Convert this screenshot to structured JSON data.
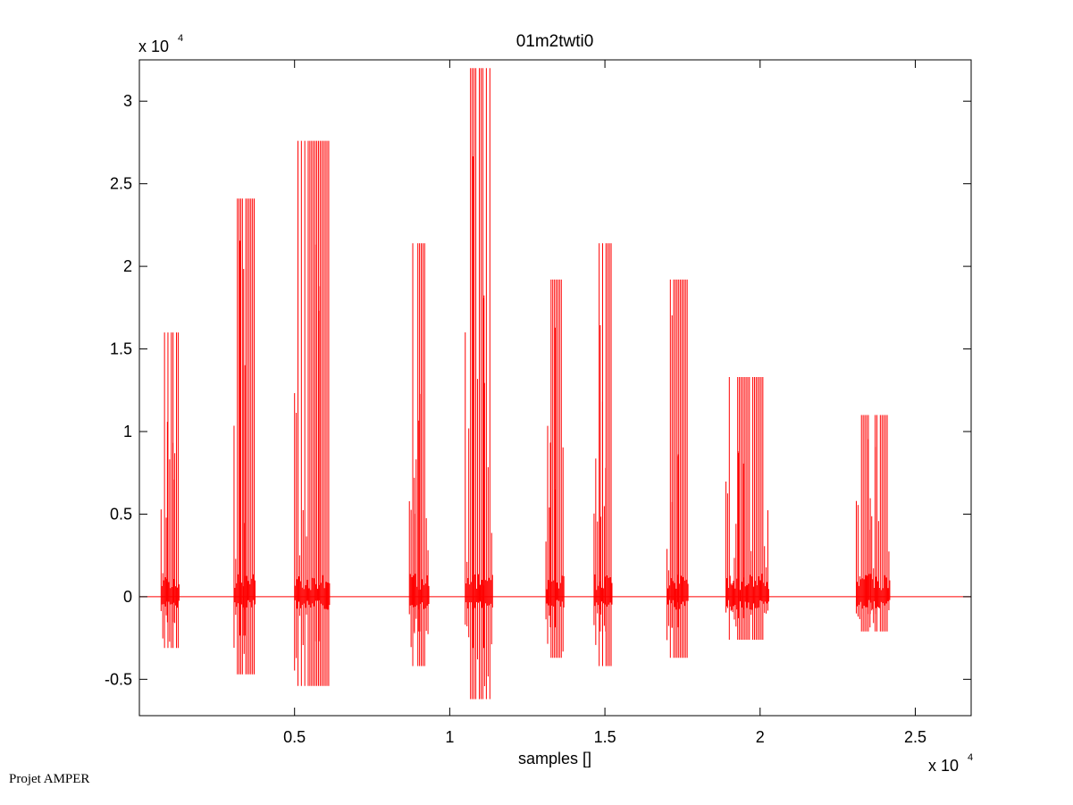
{
  "footer": "Projet AMPER",
  "chart_data": {
    "type": "line",
    "title": "01m2twti0",
    "xlabel": "samples []",
    "ylabel": "",
    "x_exponent_label": "x 10",
    "x_exponent_power": "4",
    "y_exponent_label": "x 10",
    "y_exponent_power": "4",
    "xlim": [
      0,
      26800
    ],
    "ylim": [
      -7200,
      32500
    ],
    "xticks": [
      5000,
      10000,
      15000,
      20000,
      25000
    ],
    "xtick_labels": [
      "0.5",
      "1",
      "1.5",
      "2",
      "2.5"
    ],
    "yticks": [
      -5000,
      0,
      5000,
      10000,
      15000,
      20000,
      25000,
      30000
    ],
    "ytick_labels": [
      "-0.5",
      "0",
      "0.5",
      "1",
      "1.5",
      "2",
      "2.5",
      "3"
    ],
    "grid": false,
    "line_color": "#ff0000",
    "series": [
      {
        "bursts": [
          {
            "start": 700,
            "end": 1250,
            "max": 16000,
            "min": -3100
          },
          {
            "start": 3050,
            "end": 3700,
            "max": 24100,
            "min": -4700
          },
          {
            "start": 5000,
            "end": 6100,
            "max": 27600,
            "min": -5400
          },
          {
            "start": 8700,
            "end": 9300,
            "max": 21400,
            "min": -4200
          },
          {
            "start": 10500,
            "end": 11350,
            "max": 32000,
            "min": -6200
          },
          {
            "start": 13100,
            "end": 13650,
            "max": 19200,
            "min": -3700
          },
          {
            "start": 14650,
            "end": 15200,
            "max": 21400,
            "min": -4200
          },
          {
            "start": 17000,
            "end": 17650,
            "max": 19200,
            "min": -3700
          },
          {
            "start": 18900,
            "end": 20250,
            "max": 13300,
            "min": -2600
          },
          {
            "start": 23100,
            "end": 24150,
            "max": 11000,
            "min": -2100
          }
        ]
      }
    ]
  }
}
